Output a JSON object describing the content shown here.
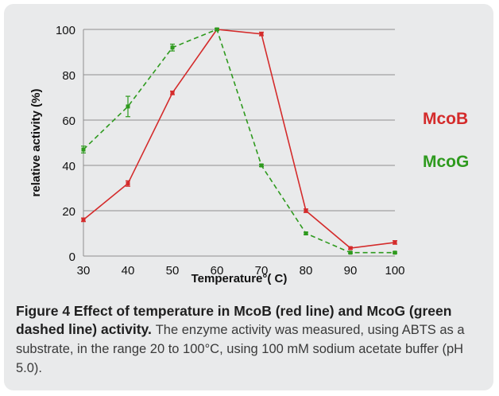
{
  "chart_data": {
    "type": "line",
    "xlabel": "Temperature°( C)",
    "ylabel": "relative activity (%)",
    "xlim": [
      30,
      100
    ],
    "ylim": [
      0,
      100
    ],
    "x_ticks": [
      30,
      40,
      50,
      60,
      70,
      80,
      90,
      100
    ],
    "y_ticks": [
      0,
      20,
      40,
      60,
      80,
      100
    ],
    "grid": "horizontal",
    "legend": "right",
    "series": [
      {
        "name": "McoB",
        "color": "#d42b2b",
        "style": "solid",
        "x": [
          30,
          40,
          50,
          60,
          70,
          80,
          90,
          100
        ],
        "y": [
          16,
          32,
          72,
          100,
          98,
          20,
          3.5,
          6
        ],
        "err": [
          0.8,
          1.2,
          0.8,
          0.5,
          0.8,
          0.8,
          0.5,
          0.8
        ]
      },
      {
        "name": "McoG",
        "color": "#2e9a1e",
        "style": "dashed",
        "x": [
          30,
          40,
          50,
          60,
          70,
          80,
          90,
          100
        ],
        "y": [
          47,
          66,
          92,
          100,
          40,
          10,
          1.5,
          1.5
        ],
        "err": [
          1.5,
          4.5,
          1.5,
          0.5,
          0.5,
          0.5,
          0.3,
          0.3
        ]
      }
    ]
  },
  "caption": {
    "label": "Figure 4 Effect of temperature in McoB (red line) and McoG (green dashed line) activity.",
    "text": "The enzyme activity was measured, using ABTS as a substrate, in the range 20 to 100°C, using 100 mM sodium acetate buffer (pH 5.0)."
  }
}
